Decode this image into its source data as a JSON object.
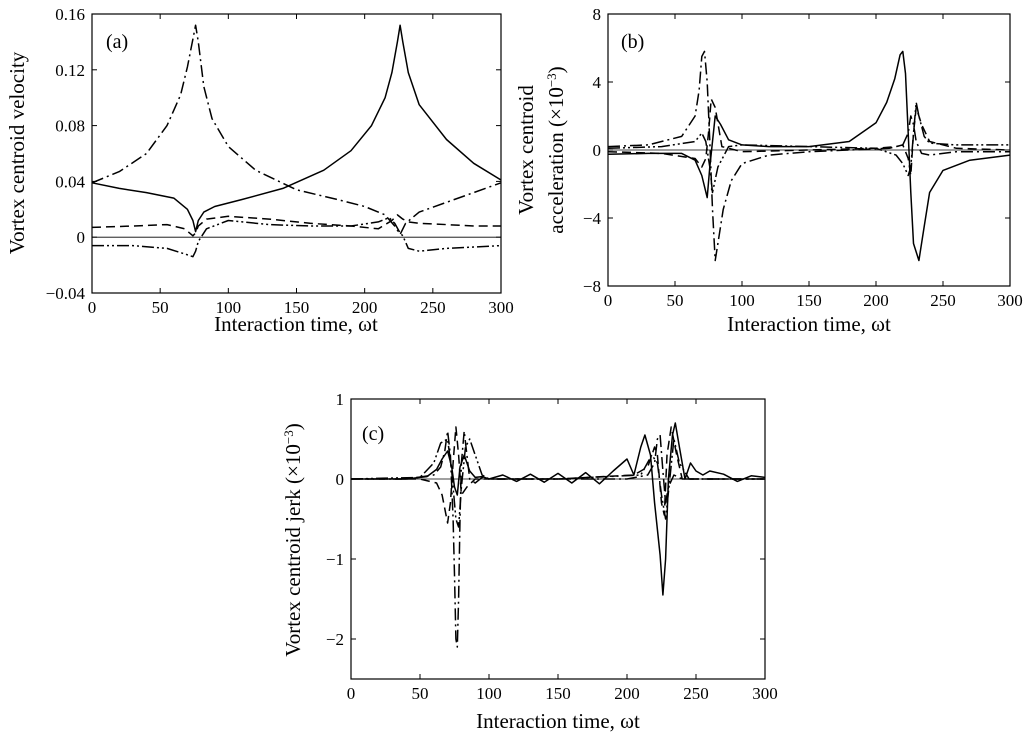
{
  "chart_data": [
    {
      "type": "line",
      "panel_label": "(a)",
      "xlabel": "Interaction time, ωt",
      "ylabel": "Vortex centroid velocity",
      "xlim": [
        0,
        300
      ],
      "ylim": [
        -0.04,
        0.16
      ],
      "xticks": [
        "0",
        "50",
        "100",
        "150",
        "200",
        "250",
        "300"
      ],
      "yticks": [
        "−0.04",
        "0",
        "0.04",
        "0.08",
        "0.12",
        "0.16"
      ],
      "zero_line": true,
      "series": [
        {
          "style": "solid",
          "x": [
            0,
            20,
            40,
            60,
            70,
            74,
            76,
            78,
            82,
            90,
            110,
            140,
            170,
            190,
            205,
            215,
            220,
            224,
            226,
            228,
            232,
            240,
            260,
            280,
            300
          ],
          "y": [
            0.039,
            0.035,
            0.032,
            0.028,
            0.02,
            0.012,
            0.004,
            0.012,
            0.018,
            0.022,
            0.027,
            0.035,
            0.048,
            0.062,
            0.08,
            0.1,
            0.118,
            0.14,
            0.152,
            0.14,
            0.118,
            0.095,
            0.07,
            0.053,
            0.041
          ]
        },
        {
          "style": "dash-dot",
          "x": [
            0,
            20,
            40,
            55,
            65,
            70,
            74,
            76,
            78,
            82,
            88,
            100,
            120,
            150,
            180,
            200,
            215,
            222,
            226,
            230,
            240,
            260,
            280,
            300
          ],
          "y": [
            0.039,
            0.047,
            0.06,
            0.08,
            0.102,
            0.122,
            0.142,
            0.152,
            0.14,
            0.108,
            0.085,
            0.065,
            0.048,
            0.034,
            0.027,
            0.022,
            0.016,
            0.008,
            0.002,
            0.01,
            0.018,
            0.025,
            0.032,
            0.039
          ]
        },
        {
          "style": "dashed",
          "x": [
            0,
            30,
            55,
            68,
            74,
            76,
            78,
            84,
            100,
            130,
            160,
            190,
            210,
            220,
            224,
            228,
            232,
            240,
            260,
            280,
            300
          ],
          "y": [
            0.007,
            0.008,
            0.009,
            0.006,
            0.001,
            0.003,
            0.008,
            0.013,
            0.015,
            0.013,
            0.01,
            0.008,
            0.006,
            0.012,
            0.016,
            0.013,
            0.011,
            0.01,
            0.009,
            0.008,
            0.008
          ]
        },
        {
          "style": "dash-dot-dot",
          "x": [
            0,
            30,
            55,
            68,
            74,
            76,
            78,
            84,
            100,
            130,
            160,
            190,
            210,
            218,
            222,
            226,
            228,
            232,
            240,
            260,
            280,
            300
          ],
          "y": [
            -0.006,
            -0.006,
            -0.008,
            -0.012,
            -0.014,
            -0.01,
            -0.003,
            0.006,
            0.012,
            0.009,
            0.008,
            0.008,
            0.011,
            0.014,
            0.01,
            0.003,
            0.001,
            -0.008,
            -0.01,
            -0.008,
            -0.007,
            -0.006
          ]
        }
      ]
    },
    {
      "type": "line",
      "panel_label": "(b)",
      "xlabel": "Interaction time, ωt",
      "ylabel": "Vortex centroid acceleration (×10⁻³)",
      "xlim": [
        0,
        300
      ],
      "ylim": [
        -8,
        8
      ],
      "xticks": [
        "0",
        "50",
        "100",
        "150",
        "200",
        "250",
        "300"
      ],
      "yticks": [
        "−8",
        "−4",
        "0",
        "4",
        "8"
      ],
      "zero_line": true,
      "series": [
        {
          "style": "solid",
          "x": [
            0,
            30,
            55,
            65,
            70,
            74,
            76,
            80,
            84,
            90,
            100,
            120,
            150,
            180,
            200,
            208,
            214,
            218,
            220,
            222,
            224,
            226,
            228,
            232,
            236,
            240,
            250,
            270,
            300
          ],
          "y": [
            -0.25,
            -0.2,
            -0.2,
            -0.6,
            -1.5,
            -2.8,
            -1.0,
            2.0,
            1.5,
            0.6,
            0.3,
            0.2,
            0.2,
            0.5,
            1.6,
            2.8,
            4.2,
            5.6,
            5.8,
            4.5,
            1.0,
            -2.5,
            -5.5,
            -6.5,
            -4.5,
            -2.5,
            -1.2,
            -0.6,
            -0.3
          ]
        },
        {
          "style": "dash-dot",
          "x": [
            0,
            30,
            55,
            65,
            68,
            70,
            72,
            74,
            76,
            78,
            80,
            82,
            86,
            92,
            100,
            120,
            150,
            180,
            210,
            220,
            224,
            226,
            228,
            230,
            234,
            240,
            260,
            300
          ],
          "y": [
            0.2,
            0.3,
            0.8,
            2.0,
            3.5,
            5.5,
            5.8,
            4.0,
            0.5,
            -3.5,
            -6.5,
            -5.5,
            -3.5,
            -1.8,
            -0.8,
            -0.3,
            -0.1,
            0.0,
            0.1,
            0.3,
            1.0,
            2.0,
            1.5,
            0.5,
            -0.2,
            -0.3,
            -0.1,
            -0.1
          ]
        },
        {
          "style": "dashed",
          "x": [
            0,
            40,
            65,
            70,
            73,
            75,
            77,
            80,
            85,
            100,
            150,
            200,
            215,
            220,
            224,
            226,
            228,
            230,
            234,
            240,
            260,
            300
          ],
          "y": [
            -0.1,
            -0.2,
            -0.5,
            -1.0,
            -0.5,
            1.0,
            3.0,
            2.5,
            0.2,
            -0.1,
            0.0,
            0.1,
            0.2,
            0.3,
            -0.5,
            -1.5,
            1.0,
            2.5,
            1.5,
            0.5,
            0.1,
            0.0
          ]
        },
        {
          "style": "dash-dot-dot",
          "x": [
            0,
            40,
            65,
            70,
            73,
            76,
            78,
            82,
            90,
            100,
            150,
            200,
            215,
            220,
            224,
            226,
            228,
            230,
            232,
            236,
            240,
            260,
            300
          ],
          "y": [
            0.1,
            0.2,
            0.5,
            1.0,
            0.5,
            -1.0,
            -2.5,
            -1.0,
            0.2,
            0.3,
            0.2,
            0.1,
            -0.3,
            -0.8,
            -1.5,
            -1.0,
            1.0,
            2.8,
            2.0,
            0.8,
            0.4,
            0.3,
            0.3
          ]
        }
      ]
    },
    {
      "type": "line",
      "panel_label": "(c)",
      "xlabel": "Interaction time, ωt",
      "ylabel": "Vortex centroid jerk (×10⁻³)",
      "xlim": [
        0,
        300
      ],
      "ylim": [
        -2.5,
        1
      ],
      "xticks": [
        "0",
        "50",
        "100",
        "150",
        "200",
        "250",
        "300"
      ],
      "yticks": [
        "−2",
        "−1",
        "0",
        "1"
      ],
      "zero_line": true,
      "series": [
        {
          "style": "solid",
          "x": [
            0,
            40,
            55,
            62,
            66,
            70,
            73,
            75,
            77,
            79,
            82,
            86,
            90,
            95,
            100,
            110,
            120,
            130,
            140,
            150,
            160,
            170,
            180,
            190,
            200,
            205,
            210,
            213,
            217,
            220,
            224,
            226,
            228,
            230,
            233,
            235,
            238,
            242,
            246,
            250,
            255,
            260,
            270,
            280,
            290,
            300
          ],
          "y": [
            0.0,
            0.0,
            0.03,
            0.12,
            0.25,
            0.35,
            0.15,
            -0.1,
            -0.2,
            0.15,
            0.3,
            0.1,
            0.02,
            0.03,
            0.0,
            0.05,
            -0.03,
            0.06,
            -0.04,
            0.07,
            -0.05,
            0.08,
            -0.06,
            0.1,
            0.25,
            0.05,
            0.4,
            0.55,
            0.3,
            -0.3,
            -0.95,
            -1.45,
            -1.0,
            0.0,
            0.55,
            0.7,
            0.4,
            0.0,
            0.2,
            0.1,
            0.05,
            0.1,
            0.06,
            -0.03,
            0.04,
            0.02
          ]
        },
        {
          "style": "dash-dot",
          "x": [
            0,
            40,
            60,
            65,
            68,
            70,
            72,
            74,
            75,
            76,
            77,
            78,
            79,
            80,
            82,
            84,
            86,
            90,
            95,
            100,
            150,
            200,
            215,
            220,
            222,
            224,
            226,
            228,
            230,
            234,
            240,
            250,
            300
          ],
          "y": [
            0.0,
            0.0,
            0.05,
            0.15,
            0.35,
            0.6,
            0.3,
            -0.5,
            -1.2,
            -2.0,
            -2.1,
            -1.5,
            -0.5,
            0.2,
            0.6,
            0.3,
            0.0,
            -0.05,
            0.02,
            0.0,
            0.0,
            0.0,
            0.05,
            0.2,
            0.5,
            0.55,
            0.1,
            -0.3,
            -0.1,
            0.05,
            0.0,
            0.0,
            0.0
          ]
        },
        {
          "style": "dashed",
          "x": [
            0,
            50,
            62,
            66,
            70,
            72,
            74,
            76,
            78,
            80,
            84,
            90,
            100,
            150,
            205,
            215,
            220,
            222,
            225,
            227,
            229,
            232,
            236,
            240,
            250,
            300
          ],
          "y": [
            0.0,
            0.0,
            -0.05,
            -0.2,
            -0.55,
            -0.3,
            0.2,
            0.65,
            0.3,
            -0.2,
            -0.1,
            0.0,
            0.0,
            0.0,
            0.05,
            0.15,
            0.4,
            0.3,
            -0.3,
            -0.45,
            0.3,
            0.65,
            0.3,
            0.0,
            0.0,
            0.0
          ]
        },
        {
          "style": "dash-dot-dot",
          "x": [
            0,
            50,
            60,
            65,
            70,
            73,
            76,
            78,
            80,
            83,
            86,
            90,
            95,
            100,
            150,
            210,
            218,
            222,
            225,
            228,
            231,
            234,
            238,
            245,
            300
          ],
          "y": [
            0.0,
            0.02,
            0.2,
            0.45,
            0.5,
            0.1,
            -0.5,
            -0.6,
            -0.1,
            0.4,
            0.5,
            0.3,
            0.05,
            0.0,
            0.0,
            0.05,
            0.3,
            0.2,
            -0.2,
            -0.5,
            0.0,
            0.5,
            0.2,
            0.0,
            0.0
          ]
        }
      ]
    }
  ]
}
